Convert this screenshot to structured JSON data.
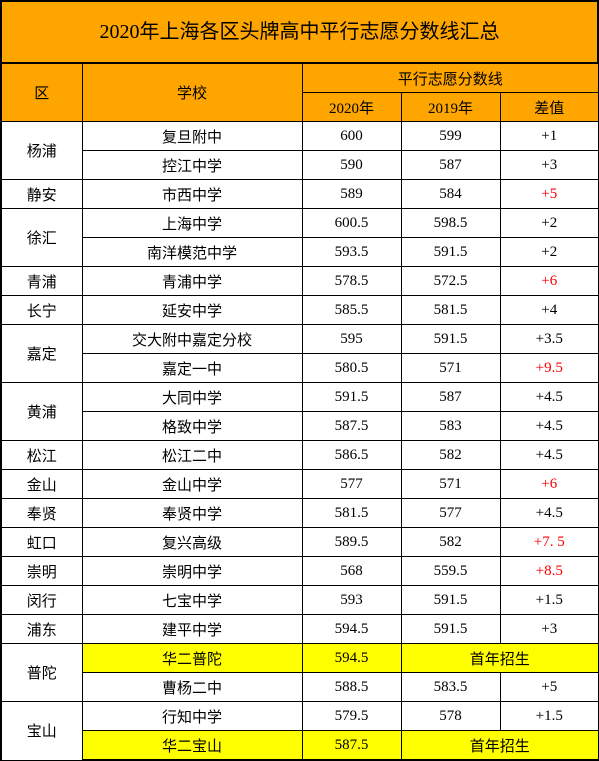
{
  "title": "2020年上海各区头牌高中平行志愿分数线汇总",
  "header": {
    "district": "区",
    "school": "学校",
    "score_group": "平行志愿分数线",
    "y2020": "2020年",
    "y2019": "2019年",
    "diff": "差值"
  },
  "colors": {
    "header_bg": "#ffa500",
    "highlight_bg": "#ffff00",
    "red_text": "#ff0000",
    "border": "#000000",
    "background": "#ffffff"
  },
  "groups": [
    {
      "district": "杨浦",
      "rows": [
        {
          "school": "复旦附中",
          "y2020": "600",
          "y2019": "599",
          "diff": "+1",
          "diff_red": false,
          "hl": false
        },
        {
          "school": "控江中学",
          "y2020": "590",
          "y2019": "587",
          "diff": "+3",
          "diff_red": false,
          "hl": false
        }
      ]
    },
    {
      "district": "静安",
      "rows": [
        {
          "school": "市西中学",
          "y2020": "589",
          "y2019": "584",
          "diff": "+5",
          "diff_red": true,
          "hl": false
        }
      ]
    },
    {
      "district": "徐汇",
      "rows": [
        {
          "school": "上海中学",
          "y2020": "600.5",
          "y2019": "598.5",
          "diff": "+2",
          "diff_red": false,
          "hl": false
        },
        {
          "school": "南洋模范中学",
          "y2020": "593.5",
          "y2019": "591.5",
          "diff": "+2",
          "diff_red": false,
          "hl": false
        }
      ]
    },
    {
      "district": "青浦",
      "rows": [
        {
          "school": "青浦中学",
          "y2020": "578.5",
          "y2019": "572.5",
          "diff": "+6",
          "diff_red": true,
          "hl": false
        }
      ]
    },
    {
      "district": "长宁",
      "rows": [
        {
          "school": "延安中学",
          "y2020": "585.5",
          "y2019": "581.5",
          "diff": "+4",
          "diff_red": false,
          "hl": false
        }
      ]
    },
    {
      "district": "嘉定",
      "rows": [
        {
          "school": "交大附中嘉定分校",
          "y2020": "595",
          "y2019": "591.5",
          "diff": "+3.5",
          "diff_red": false,
          "hl": false
        },
        {
          "school": "嘉定一中",
          "y2020": "580.5",
          "y2019": "571",
          "diff": "+9.5",
          "diff_red": true,
          "hl": false
        }
      ]
    },
    {
      "district": "黄浦",
      "rows": [
        {
          "school": "大同中学",
          "y2020": "591.5",
          "y2019": "587",
          "diff": "+4.5",
          "diff_red": false,
          "hl": false
        },
        {
          "school": "格致中学",
          "y2020": "587.5",
          "y2019": "583",
          "diff": "+4.5",
          "diff_red": false,
          "hl": false
        }
      ]
    },
    {
      "district": "松江",
      "rows": [
        {
          "school": "松江二中",
          "y2020": "586.5",
          "y2019": "582",
          "diff": "+4.5",
          "diff_red": false,
          "hl": false
        }
      ]
    },
    {
      "district": "金山",
      "rows": [
        {
          "school": "金山中学",
          "y2020": "577",
          "y2019": "571",
          "diff": "+6",
          "diff_red": true,
          "hl": false
        }
      ]
    },
    {
      "district": "奉贤",
      "rows": [
        {
          "school": "奉贤中学",
          "y2020": "581.5",
          "y2019": "577",
          "diff": "+4.5",
          "diff_red": false,
          "hl": false
        }
      ]
    },
    {
      "district": "虹口",
      "rows": [
        {
          "school": "复兴高级",
          "y2020": "589.5",
          "y2019": "582",
          "diff": "+7. 5",
          "diff_red": true,
          "hl": false
        }
      ]
    },
    {
      "district": "崇明",
      "rows": [
        {
          "school": "崇明中学",
          "y2020": "568",
          "y2019": "559.5",
          "diff": "+8.5",
          "diff_red": true,
          "hl": false
        }
      ]
    },
    {
      "district": "闵行",
      "rows": [
        {
          "school": "七宝中学",
          "y2020": "593",
          "y2019": "591.5",
          "diff": "+1.5",
          "diff_red": false,
          "hl": false
        }
      ]
    },
    {
      "district": "浦东",
      "rows": [
        {
          "school": "建平中学",
          "y2020": "594.5",
          "y2019": "591.5",
          "diff": "+3",
          "diff_red": false,
          "hl": false
        }
      ]
    },
    {
      "district": "普陀",
      "rows": [
        {
          "school": "华二普陀",
          "y2020": "594.5",
          "first_year": "首年招生",
          "hl": true
        },
        {
          "school": "曹杨二中",
          "y2020": "588.5",
          "y2019": "583.5",
          "diff": "+5",
          "diff_red": false,
          "hl": false
        }
      ]
    },
    {
      "district": "宝山",
      "rows": [
        {
          "school": "行知中学",
          "y2020": "579.5",
          "y2019": "578",
          "diff": "+1.5",
          "diff_red": false,
          "hl": false
        },
        {
          "school": "华二宝山",
          "y2020": "587.5",
          "first_year": "首年招生",
          "hl": true
        }
      ]
    }
  ]
}
